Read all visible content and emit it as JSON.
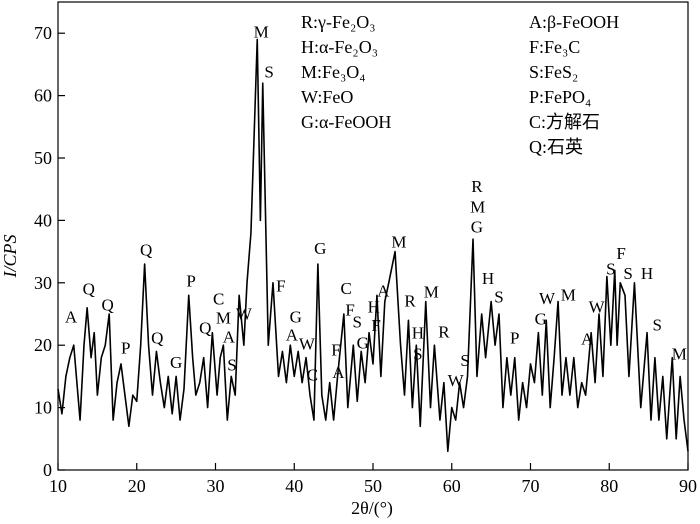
{
  "chart_data": {
    "type": "line",
    "xlabel": "2θ/(°)",
    "ylabel": "I/CPS",
    "xlim": [
      10,
      90
    ],
    "ylim": [
      0,
      75
    ],
    "xticks": [
      10,
      20,
      30,
      40,
      50,
      60,
      70,
      80,
      90
    ],
    "yticks": [
      0,
      10,
      20,
      30,
      40,
      50,
      60,
      70
    ],
    "color": "#000000",
    "x": [
      10,
      10.5,
      11,
      11.5,
      12,
      12.4,
      12.8,
      13.3,
      13.7,
      14.2,
      14.6,
      15,
      15.5,
      16,
      16.5,
      17,
      17.5,
      18,
      18.5,
      19,
      19.5,
      20,
      20.5,
      21,
      21.5,
      22,
      22.5,
      23,
      23.5,
      24,
      24.5,
      25,
      25.5,
      26,
      26.6,
      27.1,
      27.5,
      28,
      28.5,
      29,
      29.6,
      30.2,
      30.6,
      31,
      31.5,
      32,
      32.5,
      33,
      33.6,
      34,
      34.5,
      35.3,
      35.7,
      36,
      36.7,
      37.3,
      38,
      38.5,
      39,
      39.5,
      40,
      40.5,
      41,
      41.5,
      42,
      42.5,
      43,
      43.5,
      44,
      44.5,
      45,
      45.5,
      46.3,
      46.8,
      47.5,
      48,
      48.5,
      49,
      49.5,
      50,
      50.5,
      51,
      51.5,
      52,
      52.8,
      53.5,
      54,
      54.5,
      55,
      55.5,
      56,
      56.7,
      57.3,
      57.8,
      58.5,
      59,
      59.5,
      60,
      60.5,
      61,
      61.5,
      62,
      62.7,
      63.2,
      63.8,
      64.3,
      65,
      65.5,
      66,
      66.5,
      67,
      67.5,
      68,
      68.5,
      69,
      69.5,
      70,
      70.5,
      71,
      71.5,
      72,
      72.5,
      73,
      73.5,
      74,
      74.5,
      75,
      75.5,
      76,
      76.5,
      77,
      77.7,
      78.2,
      78.7,
      79.2,
      79.7,
      80.2,
      80.7,
      81,
      81.4,
      82,
      82.5,
      83.2,
      84,
      84.8,
      85.3,
      85.8,
      86.3,
      86.8,
      87.3,
      88,
      88.5,
      89,
      89.5,
      90
    ],
    "values": [
      13,
      9,
      15,
      18,
      20,
      14,
      8,
      20,
      26,
      18,
      22,
      12,
      18,
      20,
      25,
      8,
      14,
      17,
      12,
      7,
      12,
      11,
      20,
      33,
      20,
      12,
      19,
      14,
      10,
      15,
      9,
      15,
      8,
      13,
      28,
      18,
      12,
      14,
      18,
      10,
      22,
      12,
      18,
      20,
      8,
      15,
      12,
      28,
      20,
      30,
      38,
      69,
      40,
      62,
      20,
      30,
      15,
      19,
      14,
      20,
      15,
      19,
      14,
      18,
      12,
      8,
      33,
      12,
      8,
      14,
      8,
      15,
      25,
      10,
      20,
      11,
      19,
      14,
      22,
      17,
      28,
      15,
      27,
      30,
      35,
      20,
      12,
      24,
      10,
      20,
      7,
      27,
      10,
      20,
      8,
      14,
      3,
      10,
      8,
      14,
      10,
      15,
      37,
      15,
      25,
      18,
      27,
      20,
      25,
      10,
      18,
      12,
      18,
      8,
      14,
      10,
      17,
      14,
      22,
      12,
      24,
      10,
      18,
      27,
      12,
      18,
      12,
      18,
      10,
      14,
      12,
      22,
      14,
      25,
      15,
      31,
      20,
      32,
      20,
      30,
      28,
      15,
      30,
      10,
      22,
      8,
      18,
      8,
      15,
      5,
      18,
      5,
      15,
      8,
      3
    ],
    "annotations": [
      {
        "text": "A",
        "x": 11.65,
        "y": 24.6
      },
      {
        "text": "Q",
        "x": 13.9,
        "y": 29.1
      },
      {
        "text": "Q",
        "x": 16.3,
        "y": 26.5
      },
      {
        "text": "P",
        "x": 18.6,
        "y": 19.6
      },
      {
        "text": "Q",
        "x": 21.2,
        "y": 35.3
      },
      {
        "text": "Q",
        "x": 22.6,
        "y": 21.2
      },
      {
        "text": "G",
        "x": 25.0,
        "y": 17.3
      },
      {
        "text": "P",
        "x": 26.9,
        "y": 30.4
      },
      {
        "text": "Q",
        "x": 28.7,
        "y": 22.8
      },
      {
        "text": "C",
        "x": 30.4,
        "y": 27.5
      },
      {
        "text": "M",
        "x": 31.0,
        "y": 24.4
      },
      {
        "text": "A",
        "x": 31.7,
        "y": 21.4
      },
      {
        "text": "S",
        "x": 32.1,
        "y": 16.9
      },
      {
        "text": "W",
        "x": 33.6,
        "y": 25.1
      },
      {
        "text": "M",
        "x": 35.8,
        "y": 70.3
      },
      {
        "text": "S",
        "x": 36.8,
        "y": 63.9
      },
      {
        "text": "F",
        "x": 38.3,
        "y": 29.6
      },
      {
        "text": "G",
        "x": 40.2,
        "y": 24.6
      },
      {
        "text": "A",
        "x": 39.7,
        "y": 21.7
      },
      {
        "text": "W",
        "x": 41.6,
        "y": 20.3
      },
      {
        "text": "C",
        "x": 42.3,
        "y": 15.3
      },
      {
        "text": "G",
        "x": 43.3,
        "y": 35.6
      },
      {
        "text": "F",
        "x": 45.3,
        "y": 19.3
      },
      {
        "text": "A",
        "x": 45.6,
        "y": 15.7
      },
      {
        "text": "C",
        "x": 46.6,
        "y": 29.2
      },
      {
        "text": "F",
        "x": 47.1,
        "y": 25.7
      },
      {
        "text": "S",
        "x": 48.0,
        "y": 23.8
      },
      {
        "text": "G",
        "x": 48.7,
        "y": 20.4
      },
      {
        "text": "H",
        "x": 50.1,
        "y": 26.2
      },
      {
        "text": "F",
        "x": 50.4,
        "y": 23.2
      },
      {
        "text": "A",
        "x": 51.3,
        "y": 28.8
      },
      {
        "text": "M",
        "x": 53.3,
        "y": 36.6
      },
      {
        "text": "R",
        "x": 54.7,
        "y": 27.2
      },
      {
        "text": "M",
        "x": 57.4,
        "y": 28.6
      },
      {
        "text": "H",
        "x": 55.7,
        "y": 22.0
      },
      {
        "text": "S",
        "x": 55.7,
        "y": 18.7
      },
      {
        "text": "R",
        "x": 59.0,
        "y": 22.2
      },
      {
        "text": "W",
        "x": 60.5,
        "y": 14.4
      },
      {
        "text": "S",
        "x": 61.7,
        "y": 17.6
      },
      {
        "text": "R",
        "x": 63.2,
        "y": 45.5
      },
      {
        "text": "M",
        "x": 63.3,
        "y": 42.2
      },
      {
        "text": "G",
        "x": 63.2,
        "y": 39.0
      },
      {
        "text": "H",
        "x": 64.6,
        "y": 30.8
      },
      {
        "text": "S",
        "x": 66.0,
        "y": 27.8
      },
      {
        "text": "P",
        "x": 68.0,
        "y": 21.2
      },
      {
        "text": "G",
        "x": 71.3,
        "y": 24.3
      },
      {
        "text": "W",
        "x": 72.1,
        "y": 27.6
      },
      {
        "text": "M",
        "x": 74.8,
        "y": 28.1
      },
      {
        "text": "A",
        "x": 77.2,
        "y": 21.1
      },
      {
        "text": "W",
        "x": 78.4,
        "y": 26.2
      },
      {
        "text": "S",
        "x": 80.2,
        "y": 32.3
      },
      {
        "text": "F",
        "x": 81.5,
        "y": 34.8
      },
      {
        "text": "S",
        "x": 82.4,
        "y": 31.6
      },
      {
        "text": "H",
        "x": 84.8,
        "y": 31.6
      },
      {
        "text": "S",
        "x": 86.1,
        "y": 23.3
      },
      {
        "text": "M",
        "x": 88.9,
        "y": 18.7
      }
    ],
    "legend_entries": [
      "R:γ-Fe₂O₃",
      "H:α-Fe₂O₃",
      "M:Fe₃O₄",
      "W:FeO",
      "G:α-FeOOH",
      "A:β-FeOOH",
      "F:Fe₃C",
      "S:FeS₂",
      "P:FePO₄",
      "C:方解石",
      "Q:石英"
    ]
  }
}
